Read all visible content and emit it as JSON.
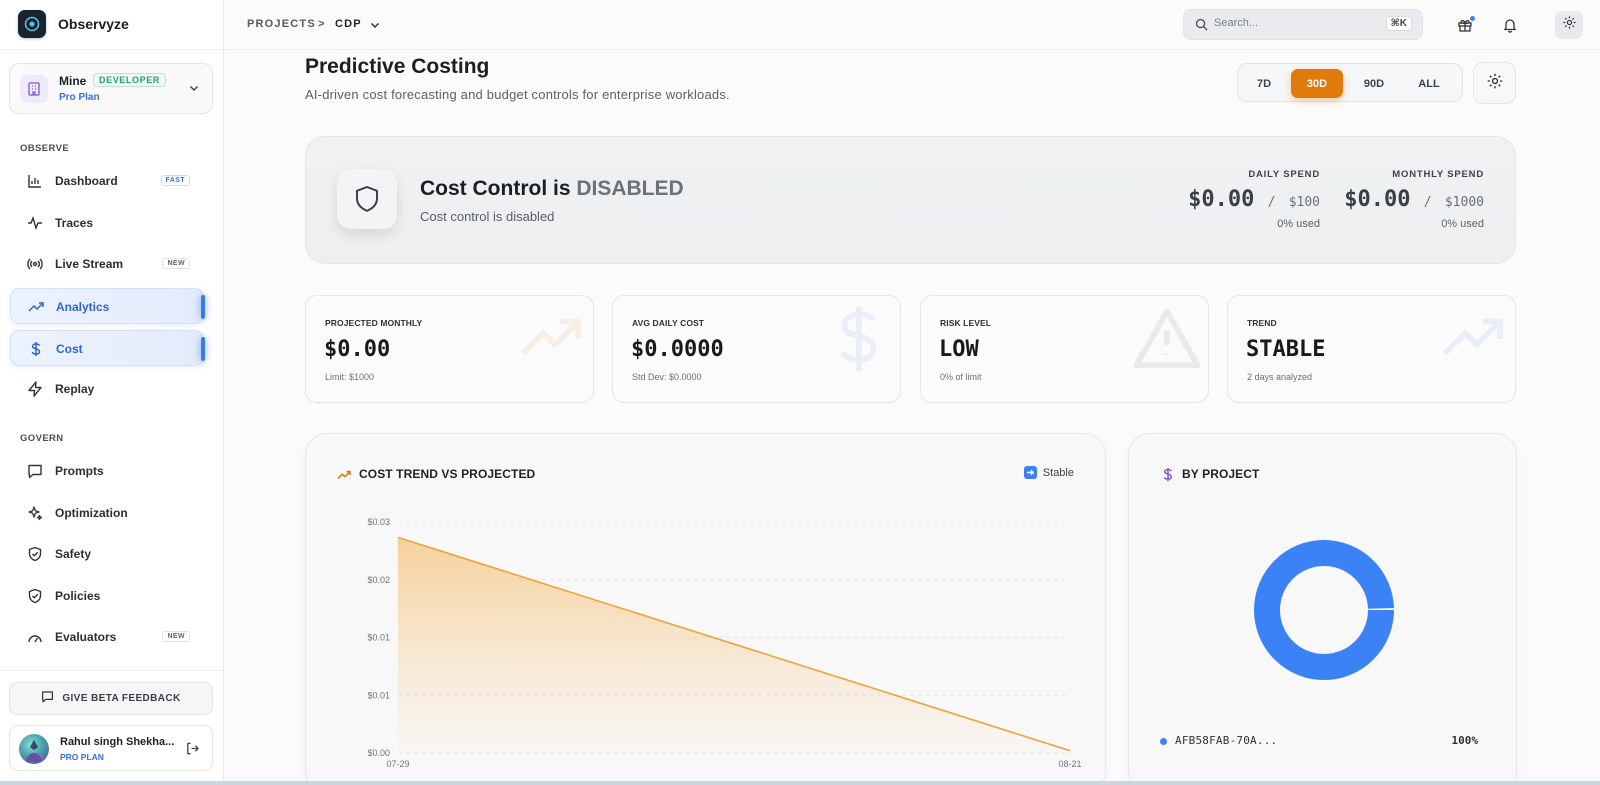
{
  "brand": {
    "name": "Observyze"
  },
  "workspace": {
    "name": "Mine",
    "badge": "DEVELOPER",
    "plan": "Pro Plan"
  },
  "nav": {
    "observe_label": "OBSERVE",
    "observe": [
      {
        "label": "Dashboard",
        "badge": "FAST",
        "icon": "bar-chart-icon"
      },
      {
        "label": "Traces",
        "badge": "",
        "icon": "activity-icon"
      },
      {
        "label": "Live Stream",
        "badge": "NEW",
        "icon": "broadcast-icon"
      },
      {
        "label": "Analytics",
        "badge": "",
        "icon": "trending-up-icon",
        "active": true
      },
      {
        "label": "Cost",
        "badge": "",
        "icon": "dollar-icon",
        "active": true
      },
      {
        "label": "Replay",
        "badge": "",
        "icon": "zap-icon"
      }
    ],
    "govern_label": "GOVERN",
    "govern": [
      {
        "label": "Prompts",
        "badge": "",
        "icon": "message-icon"
      },
      {
        "label": "Optimization",
        "badge": "",
        "icon": "sparkles-icon"
      },
      {
        "label": "Safety",
        "badge": "",
        "icon": "shield-check-icon"
      },
      {
        "label": "Policies",
        "badge": "",
        "icon": "shield-check-icon"
      },
      {
        "label": "Evaluators",
        "badge": "NEW",
        "icon": "gauge-icon"
      }
    ]
  },
  "feedback": {
    "label": "GIVE BETA FEEDBACK"
  },
  "user": {
    "name": "Rahul singh Shekha...",
    "plan": "PRO PLAN"
  },
  "topbar": {
    "crumb_root": "PROJECTS",
    "crumb_sep": ">",
    "crumb_current": "CDP",
    "search_placeholder": "Search...",
    "search_shortcut": "⌘K"
  },
  "page": {
    "title": "Predictive Costing",
    "subtitle": "AI-driven cost forecasting and budget controls for enterprise workloads."
  },
  "range": {
    "options": [
      "7D",
      "30D",
      "90D",
      "ALL"
    ],
    "selected": "30D"
  },
  "banner": {
    "title_prefix": "Cost Control is",
    "title_state": "DISABLED",
    "subtitle": "Cost control is disabled",
    "daily": {
      "label": "DAILY SPEND",
      "value": "$0.00",
      "sep": "/",
      "limit": "$100",
      "used": "0% used"
    },
    "monthly": {
      "label": "MONTHLY SPEND",
      "value": "$0.00",
      "sep": "/",
      "limit": "$1000",
      "used": "0% used"
    }
  },
  "kpis": [
    {
      "label": "PROJECTED MONTHLY",
      "value": "$0.00",
      "note": "Limit: $1000",
      "icon": "trending-up-icon"
    },
    {
      "label": "AVG DAILY COST",
      "value": "$0.0000",
      "note": "Std Dev: $0.0000",
      "icon": "dollar-icon"
    },
    {
      "label": "RISK LEVEL",
      "value": "LOW",
      "note": "0% of limit",
      "icon": "warning-icon"
    },
    {
      "label": "TREND",
      "value": "STABLE",
      "note": "2 days analyzed",
      "icon": "trending-up-icon"
    }
  ],
  "trend_panel": {
    "title": "COST TREND VS PROJECTED",
    "legend": "Stable"
  },
  "project_panel": {
    "title": "BY PROJECT"
  },
  "colors": {
    "accent": "#e07a0c",
    "line": "#f0a23c",
    "donut": "#3b82f6",
    "active_nav": "#2f66cc"
  },
  "chart_data": [
    {
      "type": "area",
      "title": "COST TREND VS PROJECTED",
      "x": [
        "07-29",
        "08-21"
      ],
      "series": [
        {
          "values": [
            0.028,
            0.0003
          ]
        }
      ],
      "y_ticks": [
        "$0.00",
        "$0.01",
        "$0.01",
        "$0.02",
        "$0.03"
      ],
      "ylim": [
        0,
        0.03
      ],
      "grid": true
    },
    {
      "type": "pie",
      "title": "BY PROJECT",
      "categories": [
        "AFB58FAB-70A..."
      ],
      "values": [
        100
      ],
      "labels": [
        "100%"
      ]
    }
  ]
}
